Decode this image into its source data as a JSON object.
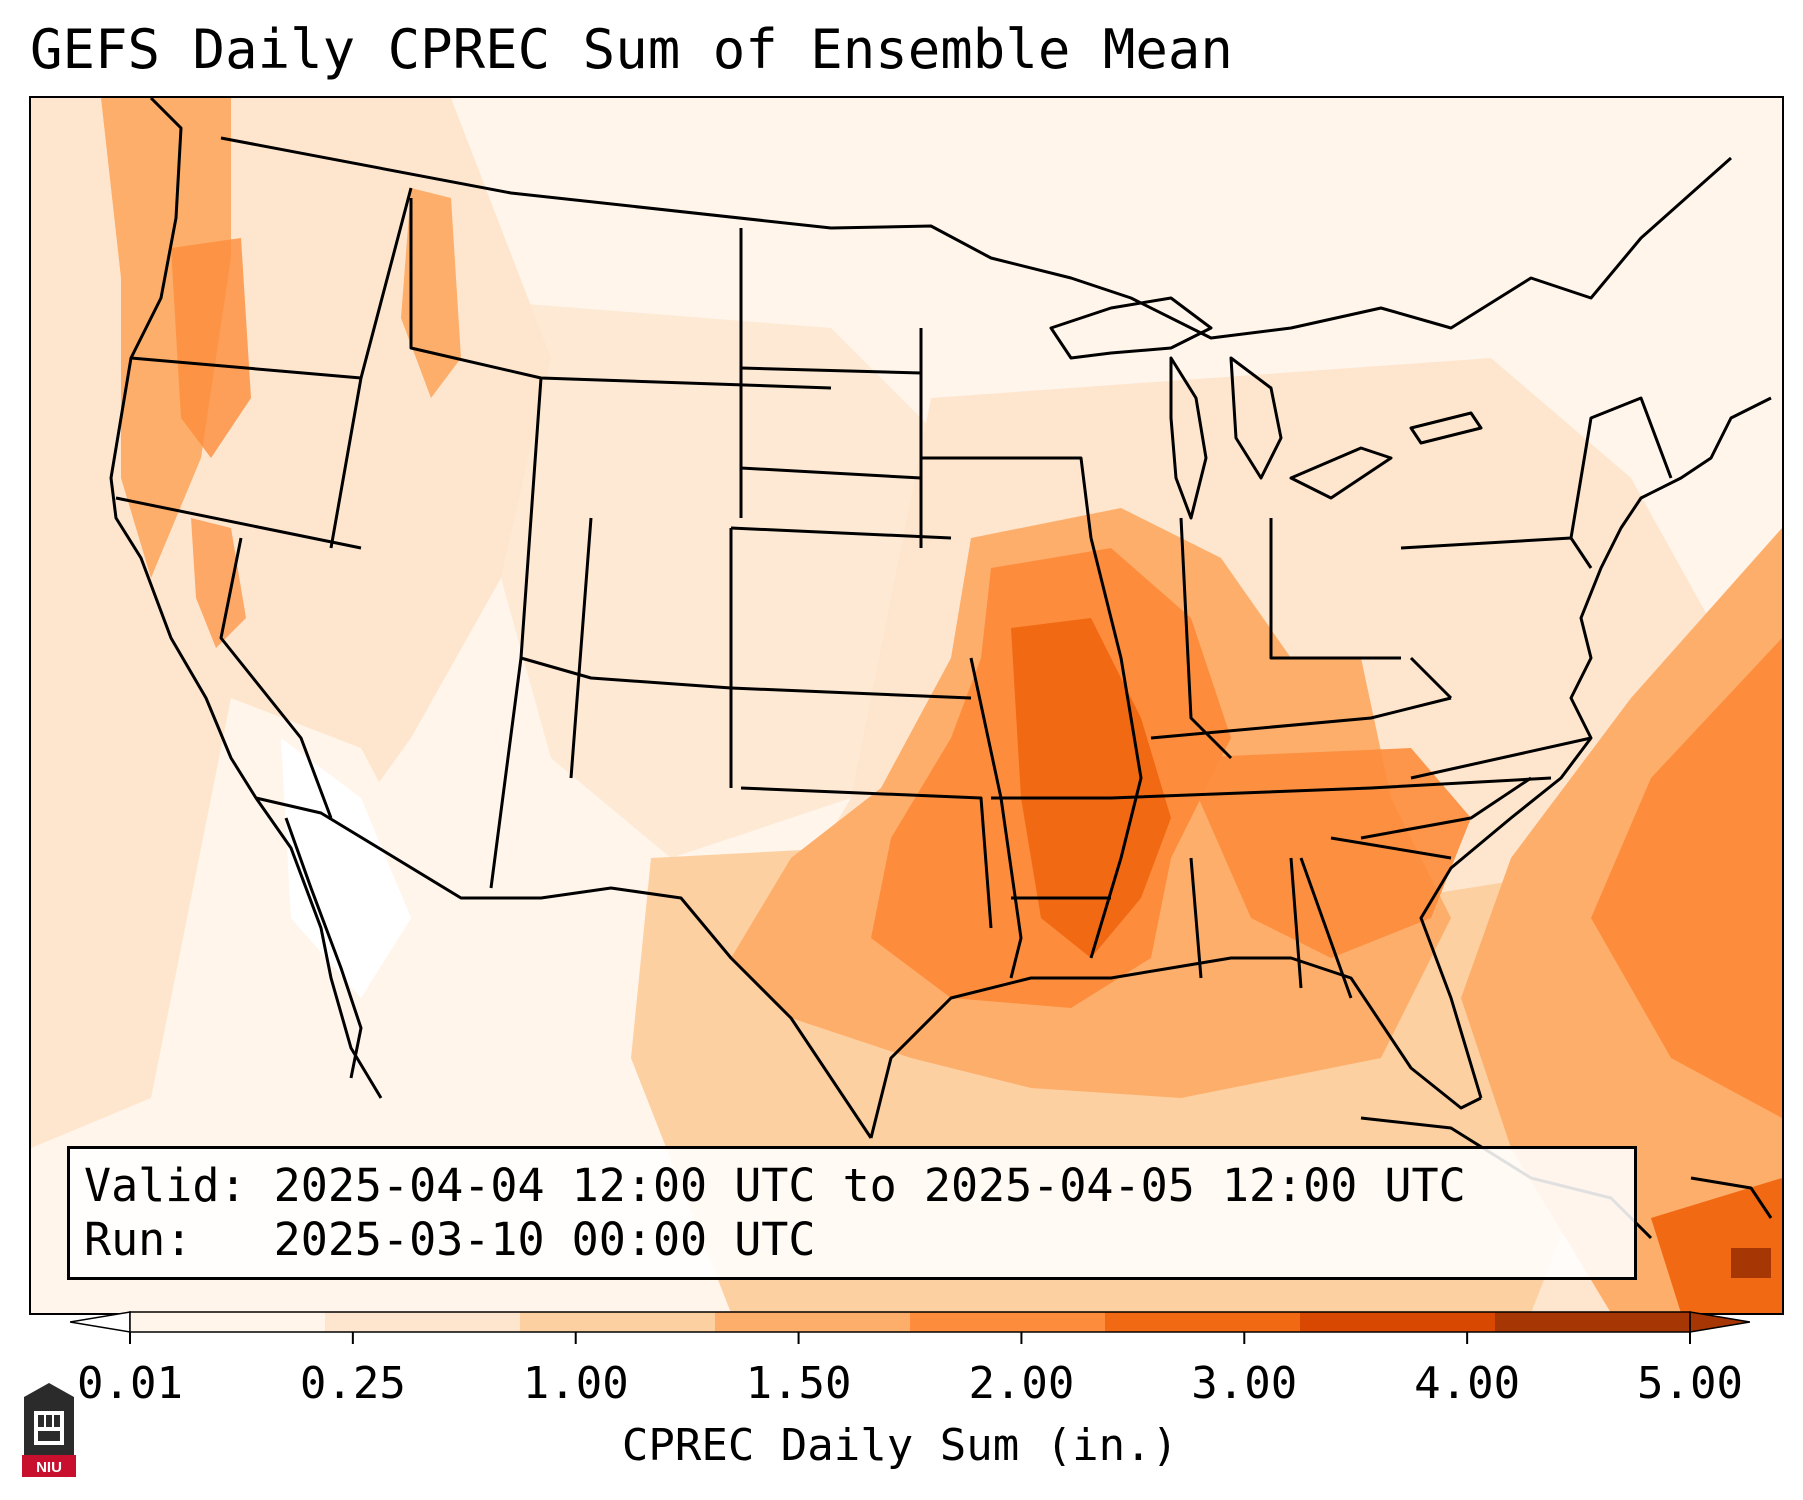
{
  "title": "GEFS Daily CPREC Sum of Ensemble Mean",
  "valid": {
    "label": "Valid:",
    "text": "Valid: 2025-04-04 12:00 UTC to 2025-04-05 12:00 UTC"
  },
  "run": {
    "label": "Run:",
    "text": "Run:   2025-03-10 00:00 UTC"
  },
  "colorbar": {
    "label": "CPREC Daily Sum (in.)",
    "ticks": [
      "0.01",
      "0.25",
      "1.00",
      "1.50",
      "2.00",
      "3.00",
      "4.00",
      "5.00"
    ],
    "colors": [
      "#fff5eb",
      "#fee6ce",
      "#fdd0a2",
      "#fdae6b",
      "#fd8d3c",
      "#f16913",
      "#d94801",
      "#a63603"
    ]
  },
  "logo": {
    "text": "NIU",
    "icon": "niu-logo-icon"
  }
}
